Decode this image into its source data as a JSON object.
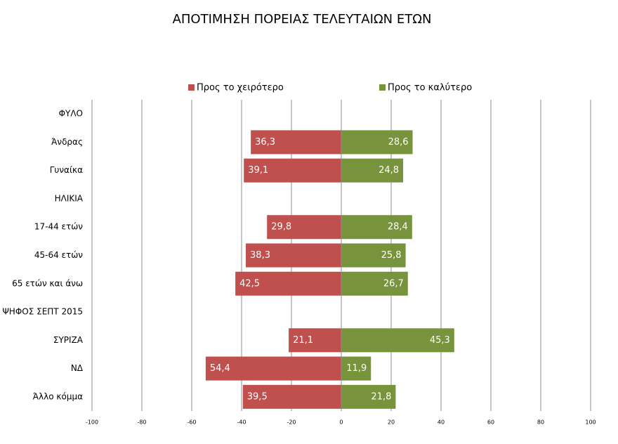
{
  "chart_data": {
    "type": "diverging_bar",
    "title": "ΑΠΟΤΙΜΗΣΗ ΠΟΡΕΙΑΣ ΤΕΛΕΥΤΑΙΩΝ ΕΤΩΝ",
    "categories": [
      "ΦΥΛΟ",
      "Άνδρας",
      "Γυναίκα",
      "ΗΛΙΚΙΑ",
      "17-44 ετών",
      "45-64 ετών",
      "65 ετών και άνω",
      "ΨΗΦΟΣ ΣΕΠΤ 2015",
      "ΣΥΡΙΖΑ",
      "ΝΔ",
      "Άλλο κόμμα"
    ],
    "series": [
      {
        "name": "Προς το χειρότερο",
        "color": "#c0504d",
        "values": [
          null,
          -36.3,
          -39.1,
          null,
          -29.8,
          -38.3,
          -42.5,
          null,
          -21.1,
          -54.4,
          -39.5
        ],
        "value_labels": [
          null,
          "36,3",
          "39,1",
          null,
          "29,8",
          "38,3",
          "42,5",
          null,
          "21,1",
          "54,4",
          "39,5"
        ]
      },
      {
        "name": "Προς το καλύτερο",
        "color": "#77933c",
        "values": [
          null,
          28.6,
          24.8,
          null,
          28.4,
          25.8,
          26.7,
          null,
          45.3,
          11.9,
          21.8
        ],
        "value_labels": [
          null,
          "28,6",
          "24,8",
          null,
          "28,4",
          "25,8",
          "26,7",
          null,
          "45,3",
          "11,9",
          "21,8"
        ]
      }
    ],
    "xlim": [
      -100,
      100
    ],
    "xticks": [
      -100,
      -80,
      -60,
      -40,
      -20,
      0,
      20,
      40,
      60,
      80,
      100
    ],
    "grid": true,
    "legend": "top"
  }
}
